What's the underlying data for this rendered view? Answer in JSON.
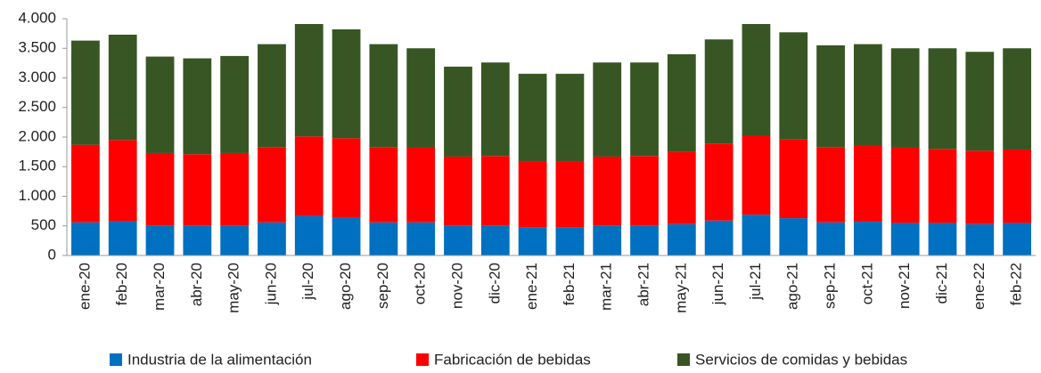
{
  "chart_data": {
    "type": "stacked_bar",
    "categories": [
      "ene-20",
      "feb-20",
      "mar-20",
      "abr-20",
      "may-20",
      "jun-20",
      "jul-20",
      "ago-20",
      "sep-20",
      "oct-20",
      "nov-20",
      "dic-20",
      "ene-21",
      "feb-21",
      "mar-21",
      "abr-21",
      "may-21",
      "jun-21",
      "jul-21",
      "ago-21",
      "sep-21",
      "oct-21",
      "nov-21",
      "dic-21",
      "ene-22",
      "feb-22"
    ],
    "series": [
      {
        "name": "Industria de la alimentación",
        "color": "#0070c0",
        "values": [
          560,
          580,
          500,
          500,
          500,
          560,
          670,
          640,
          560,
          560,
          500,
          500,
          470,
          470,
          500,
          500,
          530,
          590,
          690,
          630,
          560,
          570,
          550,
          550,
          530,
          550
        ]
      },
      {
        "name": "Fabricación de bebidas",
        "color": "#ff0000",
        "values": [
          1310,
          1370,
          1230,
          1210,
          1230,
          1270,
          1340,
          1340,
          1270,
          1260,
          1170,
          1180,
          1110,
          1110,
          1170,
          1180,
          1220,
          1300,
          1340,
          1330,
          1270,
          1280,
          1270,
          1250,
          1240,
          1240
        ]
      },
      {
        "name": "Servicios de comidas y bebidas",
        "color": "#375623",
        "values": [
          1760,
          1780,
          1630,
          1620,
          1640,
          1740,
          1900,
          1840,
          1740,
          1680,
          1520,
          1580,
          1490,
          1490,
          1590,
          1580,
          1650,
          1760,
          1880,
          1810,
          1720,
          1720,
          1680,
          1700,
          1670,
          1710
        ]
      }
    ],
    "ylim": [
      0,
      4000
    ],
    "yticks": [
      0,
      500,
      {
        "value": 1000,
        "label": "1.000"
      },
      {
        "value": 1500,
        "label": "1.500"
      },
      {
        "value": 2000,
        "label": "2.000"
      },
      {
        "value": 2500,
        "label": "2.500"
      },
      {
        "value": 3000,
        "label": "3.000"
      },
      {
        "value": 3500,
        "label": "3.500"
      },
      {
        "value": 4000,
        "label": "4.000"
      }
    ],
    "legend": "bottom"
  }
}
